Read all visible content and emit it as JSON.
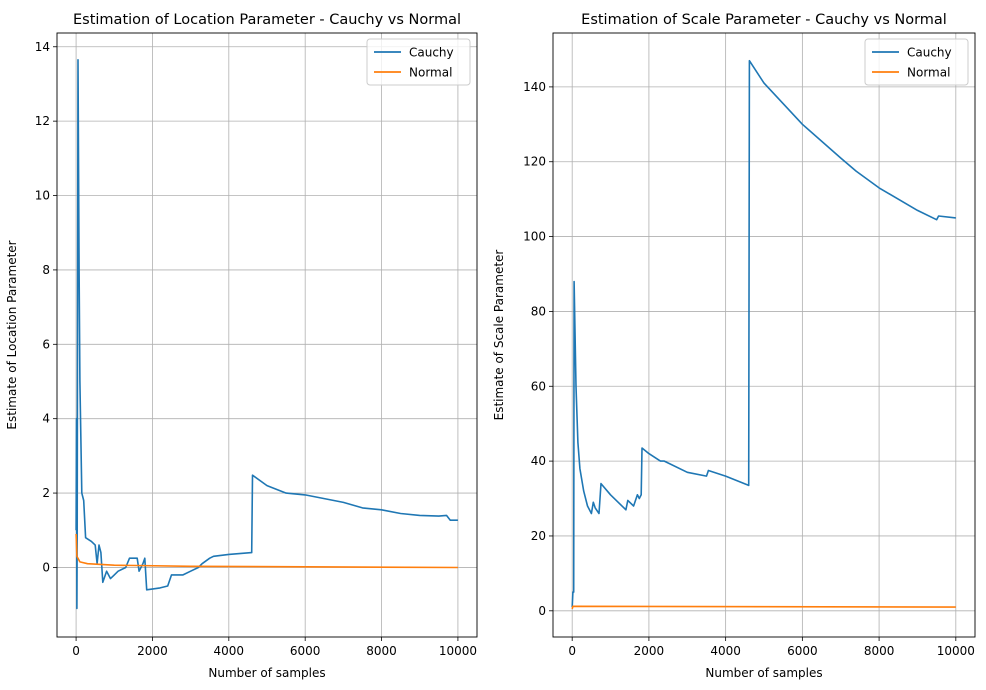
{
  "chart_data": [
    {
      "type": "line",
      "title": "Estimation of Location Parameter - Cauchy vs Normal",
      "xlabel": "Number of samples",
      "ylabel": "Estimate of Location Parameter",
      "xlim": [
        -500,
        10500
      ],
      "ylim": [
        -1.87,
        14.37
      ],
      "xticks": [
        0,
        2000,
        4000,
        6000,
        8000,
        10000
      ],
      "yticks": [
        0,
        2,
        4,
        6,
        8,
        10,
        12,
        14
      ],
      "grid": true,
      "legend": "top-right",
      "series": [
        {
          "name": "Cauchy",
          "color": "#1f77b4",
          "x": [
            0,
            10,
            20,
            30,
            50,
            80,
            100,
            150,
            200,
            250,
            400,
            500,
            550,
            600,
            650,
            700,
            800,
            900,
            1000,
            1100,
            1300,
            1400,
            1600,
            1650,
            1750,
            1800,
            1850,
            2200,
            2400,
            2500,
            2800,
            3000,
            3200,
            3300,
            3500,
            3600,
            4000,
            4600,
            4620,
            5000,
            5500,
            6000,
            6500,
            7000,
            7500,
            8000,
            8500,
            9000,
            9500,
            9700,
            9800,
            10000
          ],
          "y": [
            1,
            4,
            -1.1,
            1,
            13.65,
            8,
            5,
            2,
            1.8,
            0.8,
            0.7,
            0.6,
            0.1,
            0.6,
            0.4,
            -0.4,
            -0.1,
            -0.3,
            -0.2,
            -0.1,
            0.0,
            0.25,
            0.25,
            -0.1,
            0.1,
            0.25,
            -0.6,
            -0.55,
            -0.5,
            -0.2,
            -0.2,
            -0.1,
            0.0,
            0.1,
            0.25,
            0.3,
            0.35,
            0.4,
            2.48,
            2.2,
            2.0,
            1.95,
            1.85,
            1.75,
            1.6,
            1.55,
            1.45,
            1.4,
            1.38,
            1.4,
            1.27,
            1.27
          ]
        },
        {
          "name": "Normal",
          "color": "#ff7f0e",
          "x": [
            0,
            20,
            100,
            300,
            1000,
            3000,
            10000
          ],
          "y": [
            0.9,
            0.3,
            0.15,
            0.1,
            0.06,
            0.03,
            0.0
          ]
        }
      ]
    },
    {
      "type": "line",
      "title": "Estimation of Scale Parameter - Cauchy vs Normal",
      "xlabel": "Number of samples",
      "ylabel": "Estimate of Scale Parameter",
      "xlim": [
        -500,
        10500
      ],
      "ylim": [
        -7.0,
        154.4
      ],
      "xticks": [
        0,
        2000,
        4000,
        6000,
        8000,
        10000
      ],
      "yticks": [
        0,
        20,
        40,
        60,
        80,
        100,
        120,
        140
      ],
      "grid": true,
      "legend": "top-right",
      "series": [
        {
          "name": "Cauchy",
          "color": "#1f77b4",
          "x": [
            0,
            20,
            40,
            50,
            100,
            150,
            200,
            300,
            400,
            500,
            550,
            600,
            700,
            750,
            1000,
            1400,
            1450,
            1600,
            1700,
            1750,
            1800,
            1820,
            2000,
            2300,
            2400,
            3000,
            3500,
            3550,
            4000,
            4600,
            4620,
            5000,
            6000,
            7000,
            7400,
            8000,
            9000,
            9500,
            9550,
            10000
          ],
          "y": [
            1,
            5,
            5,
            88,
            60,
            45,
            38,
            32,
            28,
            26,
            29,
            27.5,
            26,
            34,
            31,
            27,
            29.5,
            28,
            31,
            30,
            31,
            43.5,
            42,
            40,
            40,
            37,
            36,
            37.5,
            36,
            33.5,
            147,
            141,
            130,
            121,
            117.5,
            113,
            107,
            104.5,
            105.5,
            105
          ]
        },
        {
          "name": "Normal",
          "color": "#ff7f0e",
          "x": [
            0,
            20,
            10000
          ],
          "y": [
            0.5,
            1.2,
            1.0
          ]
        }
      ]
    }
  ]
}
